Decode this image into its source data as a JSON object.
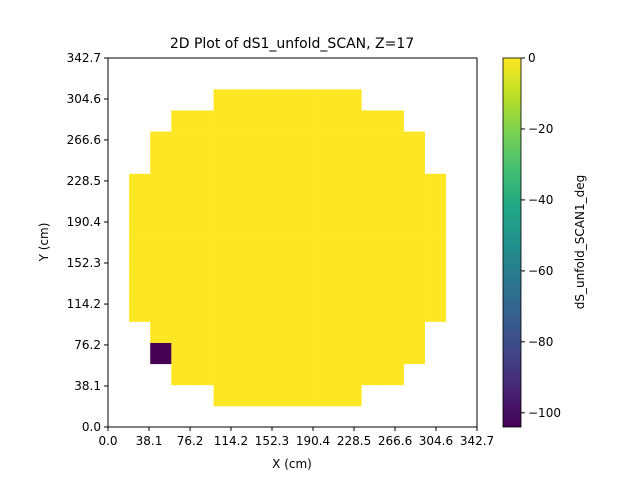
{
  "chart_data": {
    "type": "heatmap",
    "title": "2D Plot of dS1_unfold_SCAN, Z=17",
    "xlabel": "X (cm)",
    "ylabel": "Y (cm)",
    "colorbar_label": "dS_unfold_SCAN1_deg",
    "colormap": "viridis",
    "xlim": [
      0.0,
      342.7
    ],
    "ylim": [
      0.0,
      342.7
    ],
    "x_ticks": [
      "0.0",
      "38.1",
      "76.2",
      "114.2",
      "152.3",
      "190.4",
      "228.5",
      "266.6",
      "304.6",
      "342.7"
    ],
    "y_ticks": [
      "0.0",
      "38.1",
      "76.2",
      "114.2",
      "152.3",
      "190.4",
      "228.5",
      "266.6",
      "304.6",
      "342.7"
    ],
    "colorbar_range": [
      -104,
      0
    ],
    "colorbar_ticks": [
      "0",
      "−20",
      "−40",
      "−60",
      "−80",
      "−100"
    ],
    "colorbar_tick_values": [
      0,
      -20,
      -40,
      -60,
      -80,
      -100
    ],
    "cell_size_cm": 19.6,
    "grid_nx": 16,
    "grid_ny": 16,
    "rows": [
      {
        "j": 1,
        "i_min": 5,
        "i_max": 11
      },
      {
        "j": 2,
        "i_min": 3,
        "i_max": 13
      },
      {
        "j": 3,
        "i_min": 2,
        "i_max": 14
      },
      {
        "j": 4,
        "i_min": 2,
        "i_max": 14
      },
      {
        "j": 5,
        "i_min": 1,
        "i_max": 15
      },
      {
        "j": 6,
        "i_min": 1,
        "i_max": 15
      },
      {
        "j": 7,
        "i_min": 1,
        "i_max": 15
      },
      {
        "j": 8,
        "i_min": 1,
        "i_max": 15
      },
      {
        "j": 9,
        "i_min": 1,
        "i_max": 15
      },
      {
        "j": 10,
        "i_min": 1,
        "i_max": 15
      },
      {
        "j": 11,
        "i_min": 1,
        "i_max": 15
      },
      {
        "j": 12,
        "i_min": 2,
        "i_max": 14
      },
      {
        "j": 13,
        "i_min": 2,
        "i_max": 14
      },
      {
        "j": 14,
        "i_min": 3,
        "i_max": 13
      },
      {
        "j": 15,
        "i_min": 5,
        "i_max": 11
      }
    ],
    "default_value": 0,
    "special_cells": [
      {
        "i": 2,
        "j": 3,
        "value": -104
      }
    ]
  }
}
